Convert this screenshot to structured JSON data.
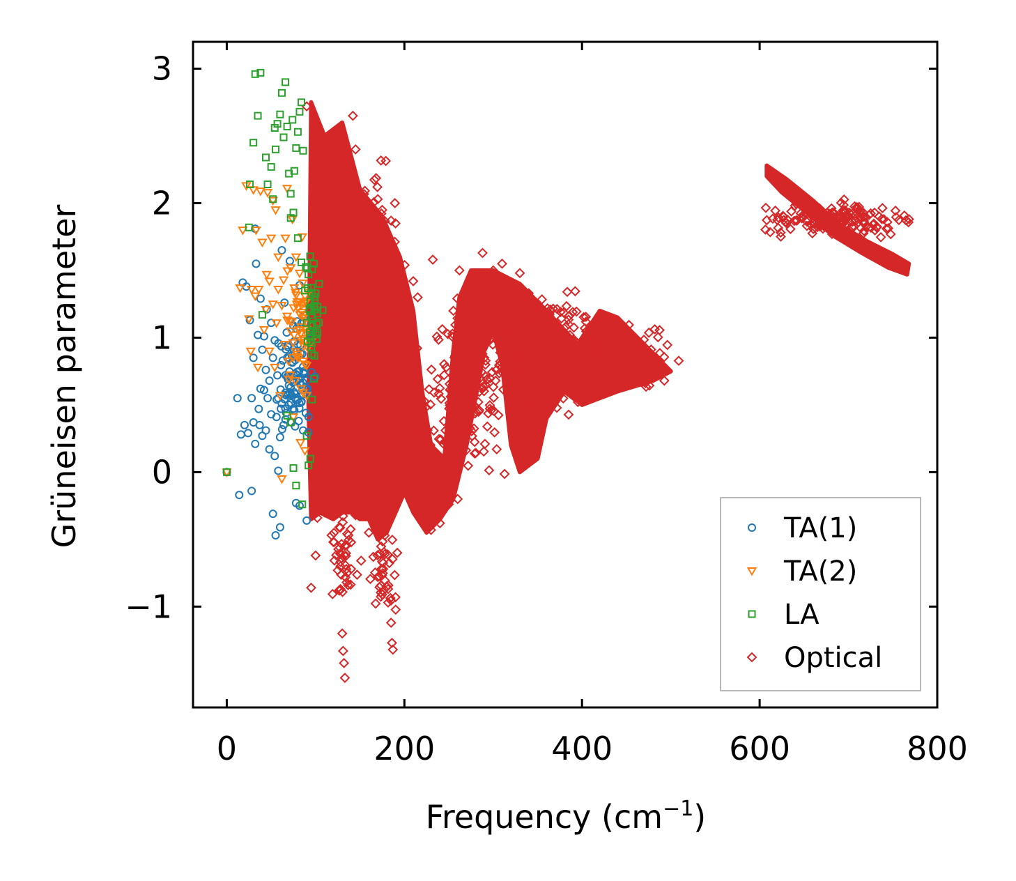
{
  "chart_data": {
    "type": "scatter",
    "title": "",
    "xlabel": "Frequency (cm",
    "xlabel_sup": "−1",
    "xlabel_close": ")",
    "ylabel": "Grüneisen parameter",
    "xlim": [
      -38,
      800
    ],
    "ylim": [
      -1.75,
      3.2
    ],
    "xticks": [
      0,
      200,
      400,
      600,
      800
    ],
    "xtick_labels": [
      "0",
      "200",
      "400",
      "600",
      "800"
    ],
    "yticks": [
      -1,
      0,
      1,
      2,
      3
    ],
    "ytick_labels": [
      "−1",
      "0",
      "1",
      "2",
      "3"
    ],
    "legend_position": "lower-right",
    "series": [
      {
        "name": "TA(1)",
        "color": "#1f77b4",
        "marker": "circle",
        "points": [
          [
            0,
            0
          ],
          [
            12,
            0.55
          ],
          [
            14,
            -0.17
          ],
          [
            16,
            0.28
          ],
          [
            18,
            1.41
          ],
          [
            20,
            0.35
          ],
          [
            22,
            1.38
          ],
          [
            24,
            0.29
          ],
          [
            26,
            1.13
          ],
          [
            28,
            -0.14
          ],
          [
            28,
            0.55
          ],
          [
            30,
            0.85
          ],
          [
            30,
            0.37
          ],
          [
            32,
            0.21
          ],
          [
            32,
            1.81
          ],
          [
            33,
            1.55
          ],
          [
            35,
            1.02
          ],
          [
            36,
            0.47
          ],
          [
            37,
            0.35
          ],
          [
            38,
            1.29
          ],
          [
            38,
            0.62
          ],
          [
            40,
            0.27
          ],
          [
            40,
            0.91
          ],
          [
            42,
            0.61
          ],
          [
            42,
            1.01
          ],
          [
            44,
            0.76
          ],
          [
            44,
            0.31
          ],
          [
            45,
            1.21
          ],
          [
            46,
            0.55
          ],
          [
            48,
            0.68
          ],
          [
            48,
            0.17
          ],
          [
            50,
            0.43
          ],
          [
            50,
            1.11
          ],
          [
            52,
            0.85
          ],
          [
            52,
            -0.31
          ],
          [
            54,
            0.98
          ],
          [
            54,
            0.12
          ],
          [
            55,
            -0.47
          ],
          [
            56,
            0.41
          ],
          [
            57,
            0.72
          ],
          [
            58,
            0.55
          ],
          [
            58,
            0.01
          ],
          [
            60,
            0.26
          ],
          [
            60,
            -0.41
          ],
          [
            62,
            1.65
          ],
          [
            62,
            0.51
          ],
          [
            63,
            0.83
          ],
          [
            64,
            0.35
          ],
          [
            65,
            1.26
          ],
          [
            66,
            0.59
          ],
          [
            67,
            0.44
          ],
          [
            68,
            0.71
          ],
          [
            69,
            0.93
          ],
          [
            70,
            0.5
          ],
          [
            71,
            1.57
          ],
          [
            72,
            0.63
          ],
          [
            73,
            0.37
          ],
          [
            74,
            0.82
          ],
          [
            75,
            1.09
          ],
          [
            76,
            0.46
          ],
          [
            77,
            0.58
          ],
          [
            78,
            -0.23
          ],
          [
            79,
            0.72
          ],
          [
            80,
            0.95
          ],
          [
            81,
            0.38
          ],
          [
            82,
            1.39
          ],
          [
            82,
            -0.25
          ],
          [
            83,
            0.65
          ],
          [
            84,
            0.52
          ],
          [
            85,
            0.88
          ],
          [
            86,
            0.31
          ],
          [
            87,
            0.75
          ],
          [
            88,
            1.17
          ],
          [
            89,
            0.44
          ],
          [
            90,
            -0.36
          ],
          [
            90,
            0.61
          ]
        ],
        "dense_clusters": [
          [
            75,
            0.75,
            22,
            0.42,
            70
          ]
        ]
      },
      {
        "name": "TA(2)",
        "color": "#ff7f0e",
        "marker": "triangle-down",
        "points": [
          [
            0,
            0
          ],
          [
            15,
            1.37
          ],
          [
            18,
            1.8
          ],
          [
            22,
            2.13
          ],
          [
            25,
            1.14
          ],
          [
            27,
            0.9
          ],
          [
            28,
            1.36
          ],
          [
            30,
            2.1
          ],
          [
            32,
            1.31
          ],
          [
            33,
            1.8
          ],
          [
            35,
            0.78
          ],
          [
            36,
            1.36
          ],
          [
            38,
            2.09
          ],
          [
            40,
            1.71
          ],
          [
            42,
            1.06
          ],
          [
            44,
            1.21
          ],
          [
            45,
            1.47
          ],
          [
            46,
            2.08
          ],
          [
            48,
            1.42
          ],
          [
            48,
            0.9
          ],
          [
            50,
            1.74
          ],
          [
            52,
            2.02
          ],
          [
            52,
            1.25
          ],
          [
            54,
            0.78
          ],
          [
            55,
            1.95
          ],
          [
            56,
            1.11
          ],
          [
            58,
            1.36
          ],
          [
            58,
            1.6
          ],
          [
            60,
            0.57
          ],
          [
            62,
            1.24
          ],
          [
            62,
            -0.05
          ],
          [
            64,
            1.43
          ],
          [
            65,
            0.95
          ],
          [
            66,
            1.74
          ],
          [
            68,
            1.16
          ],
          [
            68,
            2.11
          ],
          [
            70,
            0.69
          ],
          [
            72,
            1.52
          ],
          [
            72,
            1.05
          ],
          [
            74,
            1.88
          ],
          [
            75,
            0.41
          ],
          [
            76,
            1.37
          ],
          [
            78,
            1.6
          ],
          [
            79,
            0.86
          ],
          [
            80,
            1.22
          ],
          [
            82,
            1.48
          ],
          [
            83,
            0.22
          ],
          [
            84,
            0.98
          ],
          [
            85,
            1.75
          ],
          [
            86,
            0.59
          ],
          [
            88,
            1.31
          ],
          [
            88,
            0.16
          ],
          [
            90,
            1.06
          ],
          [
            90,
            0.57
          ]
        ],
        "dense_clusters": [
          [
            82,
            1.05,
            14,
            0.45,
            45
          ]
        ]
      },
      {
        "name": "LA",
        "color": "#2ca02c",
        "marker": "square",
        "points": [
          [
            0,
            0
          ],
          [
            25,
            1.82
          ],
          [
            26,
            2.14
          ],
          [
            30,
            2.45
          ],
          [
            32,
            2.96
          ],
          [
            35,
            2.65
          ],
          [
            38,
            2.97
          ],
          [
            40,
            1.17
          ],
          [
            44,
            2.34
          ],
          [
            46,
            2.14
          ],
          [
            50,
            2.27
          ],
          [
            52,
            2.03
          ],
          [
            54,
            2.56
          ],
          [
            55,
            2.4
          ],
          [
            57,
            2.59
          ],
          [
            60,
            2.66
          ],
          [
            62,
            2.82
          ],
          [
            64,
            2.49
          ],
          [
            66,
            2.9
          ],
          [
            68,
            2.57
          ],
          [
            70,
            2.22
          ],
          [
            72,
            2.07
          ],
          [
            74,
            2.62
          ],
          [
            76,
            2.24
          ],
          [
            78,
            2.41
          ],
          [
            80,
            2.53
          ],
          [
            82,
            2.68
          ],
          [
            84,
            2.75
          ],
          [
            86,
            2.39
          ],
          [
            72,
            1.89
          ],
          [
            75,
            1.93
          ],
          [
            80,
            1.74
          ],
          [
            84,
            1.56
          ],
          [
            88,
            1.35
          ],
          [
            90,
            1.11
          ],
          [
            92,
            1.47
          ],
          [
            95,
            0.93
          ],
          [
            98,
            1.55
          ],
          [
            100,
            1.33
          ],
          [
            102,
            1.18
          ],
          [
            104,
            1.4
          ],
          [
            90,
            0.27
          ],
          [
            92,
            0.05
          ],
          [
            94,
            0.1
          ],
          [
            75,
            0.03
          ],
          [
            78,
            -0.1
          ],
          [
            85,
            -0.24
          ],
          [
            68,
            0.42
          ],
          [
            72,
            0.37
          ],
          [
            96,
            0.54
          ]
        ],
        "dense_clusters": [
          [
            97,
            1.2,
            8,
            0.4,
            35
          ]
        ]
      },
      {
        "name": "Optical",
        "color": "#d62728",
        "marker": "diamond",
        "points": [
          [
            90,
            2.72
          ],
          [
            95,
            -0.86
          ],
          [
            100,
            -0.62
          ],
          [
            102,
            -0.34
          ],
          [
            110,
            -0.3
          ],
          [
            118,
            -0.47
          ],
          [
            120,
            -0.52
          ],
          [
            125,
            -0.73
          ],
          [
            128,
            -0.87
          ],
          [
            130,
            -1.2
          ],
          [
            131,
            -1.33
          ],
          [
            132,
            -1.42
          ],
          [
            133,
            -1.53
          ],
          [
            135,
            -0.82
          ],
          [
            140,
            -0.72
          ],
          [
            145,
            -0.32
          ],
          [
            160,
            -0.45
          ],
          [
            165,
            -0.63
          ],
          [
            170,
            -0.78
          ],
          [
            175,
            -0.91
          ],
          [
            180,
            -0.85
          ],
          [
            185,
            -1.12
          ],
          [
            186,
            -1.27
          ],
          [
            187,
            -1.32
          ],
          [
            190,
            -0.93
          ],
          [
            192,
            -0.6
          ],
          [
            230,
            -0.43
          ],
          [
            240,
            -0.38
          ],
          [
            250,
            -0.24
          ],
          [
            260,
            -0.2
          ],
          [
            232,
            1.58
          ],
          [
            262,
            1.5
          ],
          [
            288,
            1.63
          ],
          [
            300,
            1.5
          ],
          [
            310,
            1.55
          ],
          [
            330,
            1.48
          ],
          [
            340,
            1.33
          ],
          [
            170,
            2.03
          ],
          [
            175,
            1.95
          ],
          [
            185,
            1.87
          ],
          [
            190,
            1.85
          ],
          [
            142,
            2.65
          ],
          [
            145,
            2.4
          ],
          [
            210,
            1.42
          ],
          [
            215,
            1.3
          ]
        ],
        "regions": [
          [
            [
              95,
              2.75
            ],
            [
              110,
              2.5
            ],
            [
              130,
              2.6
            ],
            [
              150,
              2.1
            ],
            [
              175,
              1.9
            ],
            [
              195,
              1.6
            ],
            [
              210,
              1.2
            ],
            [
              220,
              0.6
            ],
            [
              230,
              0.2
            ],
            [
              245,
              0.1
            ],
            [
              255,
              0.9
            ],
            [
              262,
              1.3
            ],
            [
              275,
              1.5
            ],
            [
              300,
              1.5
            ],
            [
              330,
              1.4
            ],
            [
              360,
              1.2
            ],
            [
              395,
              0.95
            ],
            [
              420,
              1.2
            ],
            [
              440,
              1.15
            ],
            [
              470,
              0.95
            ],
            [
              500,
              0.75
            ],
            [
              480,
              0.68
            ],
            [
              440,
              0.6
            ],
            [
              400,
              0.5
            ],
            [
              380,
              0.6
            ],
            [
              360,
              0.4
            ],
            [
              350,
              0.1
            ],
            [
              330,
              0.0
            ],
            [
              320,
              0.2
            ],
            [
              310,
              0.8
            ],
            [
              300,
              1.05
            ],
            [
              290,
              0.9
            ],
            [
              280,
              0.55
            ],
            [
              270,
              0.2
            ],
            [
              255,
              -0.2
            ],
            [
              240,
              -0.35
            ],
            [
              225,
              -0.45
            ],
            [
              210,
              -0.3
            ],
            [
              200,
              -0.15
            ],
            [
              190,
              -0.3
            ],
            [
              180,
              -0.45
            ],
            [
              170,
              -0.5
            ],
            [
              160,
              -0.35
            ],
            [
              150,
              -0.35
            ],
            [
              140,
              -0.3
            ],
            [
              130,
              -0.3
            ],
            [
              120,
              -0.35
            ],
            [
              105,
              -0.3
            ],
            [
              95,
              -0.35
            ],
            [
              92,
              0.5
            ]
          ],
          [
            [
              608,
              2.28
            ],
            [
              630,
              2.18
            ],
            [
              660,
              2.02
            ],
            [
              690,
              1.84
            ],
            [
              720,
              1.72
            ],
            [
              750,
              1.62
            ],
            [
              768,
              1.55
            ],
            [
              766,
              1.47
            ],
            [
              745,
              1.52
            ],
            [
              715,
              1.63
            ],
            [
              685,
              1.75
            ],
            [
              655,
              1.92
            ],
            [
              625,
              2.08
            ],
            [
              608,
              2.2
            ]
          ]
        ],
        "dense_clusters": [
          [
            160,
            1.2,
            35,
            0.9,
            220
          ],
          [
            270,
            0.6,
            40,
            0.6,
            160
          ],
          [
            360,
            0.9,
            60,
            0.45,
            200
          ],
          [
            450,
            0.85,
            45,
            0.25,
            120
          ],
          [
            690,
            1.88,
            75,
            0.1,
            160
          ],
          [
            200,
            0.3,
            30,
            0.5,
            120
          ],
          [
            130,
            -0.6,
            15,
            0.35,
            40
          ],
          [
            178,
            -0.75,
            12,
            0.3,
            35
          ]
        ]
      }
    ]
  }
}
